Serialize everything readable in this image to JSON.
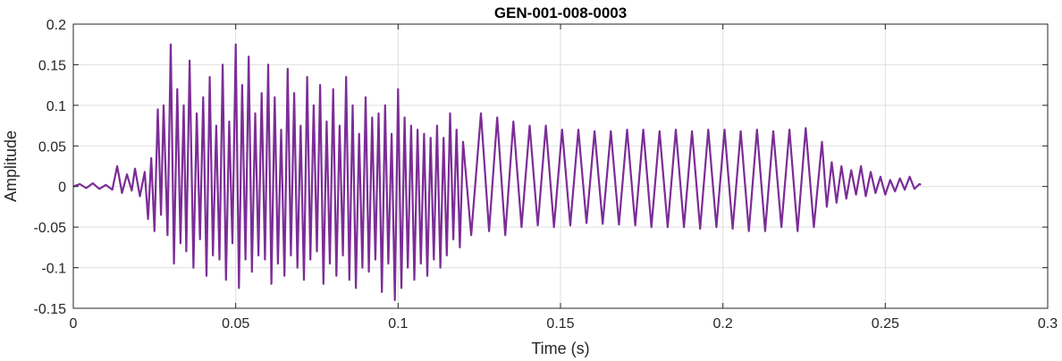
{
  "chart_data": {
    "type": "line",
    "title": "GEN-001-008-0003",
    "xlabel": "Time (s)",
    "ylabel": "Amplitude",
    "xlim": [
      0,
      0.3
    ],
    "ylim": [
      -0.15,
      0.2
    ],
    "xticks": [
      0,
      0.05,
      0.1,
      0.15,
      0.2,
      0.25,
      0.3
    ],
    "xtick_labels": [
      "0",
      "0.05",
      "0.1",
      "0.15",
      "0.2",
      "0.25",
      "0.3"
    ],
    "yticks": [
      -0.15,
      -0.1,
      -0.05,
      0,
      0.05,
      0.1,
      0.15,
      0.2
    ],
    "ytick_labels": [
      "-0.15",
      "-0.1",
      "-0.05",
      "0",
      "0.05",
      "0.1",
      "0.15",
      "0.2"
    ],
    "grid": true,
    "series": [
      {
        "color": "#7b2d96",
        "x": [
          0.0,
          0.002,
          0.004,
          0.006,
          0.008,
          0.01,
          0.012,
          0.0135,
          0.015,
          0.0165,
          0.018,
          0.019,
          0.0205,
          0.022,
          0.023,
          0.024,
          0.025,
          0.026,
          0.027,
          0.0278,
          0.029,
          0.03,
          0.031,
          0.032,
          0.033,
          0.034,
          0.0348,
          0.0358,
          0.037,
          0.038,
          0.039,
          0.04,
          0.041,
          0.042,
          0.043,
          0.044,
          0.045,
          0.046,
          0.047,
          0.048,
          0.049,
          0.05,
          0.051,
          0.052,
          0.053,
          0.054,
          0.055,
          0.056,
          0.057,
          0.058,
          0.059,
          0.06,
          0.061,
          0.062,
          0.063,
          0.064,
          0.065,
          0.066,
          0.067,
          0.068,
          0.069,
          0.07,
          0.071,
          0.072,
          0.073,
          0.074,
          0.075,
          0.076,
          0.077,
          0.078,
          0.079,
          0.08,
          0.081,
          0.082,
          0.083,
          0.084,
          0.085,
          0.086,
          0.087,
          0.088,
          0.089,
          0.09,
          0.091,
          0.092,
          0.093,
          0.094,
          0.095,
          0.096,
          0.097,
          0.098,
          0.099,
          0.1,
          0.101,
          0.102,
          0.103,
          0.104,
          0.105,
          0.106,
          0.107,
          0.108,
          0.109,
          0.11,
          0.111,
          0.112,
          0.113,
          0.114,
          0.115,
          0.116,
          0.117,
          0.118,
          0.119,
          0.12,
          0.1225,
          0.1255,
          0.128,
          0.1305,
          0.133,
          0.1355,
          0.138,
          0.1405,
          0.143,
          0.1455,
          0.148,
          0.1505,
          0.153,
          0.1555,
          0.158,
          0.1605,
          0.163,
          0.1655,
          0.168,
          0.1705,
          0.173,
          0.1755,
          0.178,
          0.1805,
          0.183,
          0.1855,
          0.188,
          0.1905,
          0.193,
          0.1955,
          0.198,
          0.2005,
          0.203,
          0.2055,
          0.208,
          0.2105,
          0.213,
          0.2155,
          0.218,
          0.2205,
          0.223,
          0.2255,
          0.228,
          0.2305,
          0.232,
          0.2335,
          0.235,
          0.2365,
          0.238,
          0.2395,
          0.241,
          0.2425,
          0.244,
          0.2455,
          0.247,
          0.2485,
          0.25,
          0.2515,
          0.253,
          0.2545,
          0.256,
          0.2575,
          0.259,
          0.2605,
          0.261
        ],
        "y": [
          0.0,
          0.003,
          -0.002,
          0.004,
          -0.003,
          0.002,
          -0.004,
          0.025,
          -0.008,
          0.015,
          -0.005,
          0.022,
          -0.012,
          0.018,
          -0.04,
          0.035,
          -0.055,
          0.095,
          -0.035,
          0.1,
          -0.06,
          0.175,
          -0.095,
          0.12,
          -0.07,
          0.1,
          -0.08,
          0.155,
          -0.1,
          0.09,
          -0.065,
          0.11,
          -0.11,
          0.135,
          -0.085,
          0.075,
          -0.09,
          0.15,
          -0.115,
          0.08,
          -0.07,
          0.175,
          -0.125,
          0.125,
          -0.09,
          0.16,
          -0.105,
          0.09,
          -0.085,
          0.115,
          -0.09,
          0.15,
          -0.12,
          0.11,
          -0.095,
          0.07,
          -0.11,
          0.145,
          -0.085,
          0.115,
          -0.1,
          0.075,
          -0.115,
          0.135,
          -0.09,
          0.1,
          -0.08,
          0.125,
          -0.12,
          0.08,
          -0.095,
          0.12,
          -0.11,
          0.075,
          -0.085,
          0.135,
          -0.115,
          0.1,
          -0.125,
          0.065,
          -0.1,
          0.11,
          -0.105,
          0.085,
          -0.09,
          0.09,
          -0.13,
          0.1,
          -0.095,
          0.065,
          -0.14,
          0.12,
          -0.125,
          0.085,
          -0.1,
          0.075,
          -0.115,
          0.07,
          -0.095,
          0.065,
          -0.11,
          0.06,
          -0.09,
          0.075,
          -0.1,
          0.06,
          -0.085,
          0.09,
          -0.065,
          0.07,
          -0.075,
          0.055,
          -0.06,
          0.09,
          -0.055,
          0.085,
          -0.06,
          0.08,
          -0.05,
          0.075,
          -0.048,
          0.075,
          -0.05,
          0.07,
          -0.048,
          0.07,
          -0.045,
          0.068,
          -0.046,
          0.068,
          -0.047,
          0.07,
          -0.048,
          0.07,
          -0.05,
          0.068,
          -0.05,
          0.07,
          -0.05,
          0.068,
          -0.052,
          0.07,
          -0.05,
          0.07,
          -0.052,
          0.068,
          -0.055,
          0.07,
          -0.055,
          0.068,
          -0.05,
          0.07,
          -0.055,
          0.072,
          -0.05,
          0.055,
          -0.025,
          0.03,
          -0.02,
          0.025,
          -0.015,
          0.02,
          -0.01,
          0.025,
          -0.012,
          0.018,
          -0.008,
          0.012,
          -0.01,
          0.008,
          -0.006,
          0.01,
          -0.004,
          0.012,
          -0.003,
          0.003,
          0.002
        ]
      }
    ]
  }
}
